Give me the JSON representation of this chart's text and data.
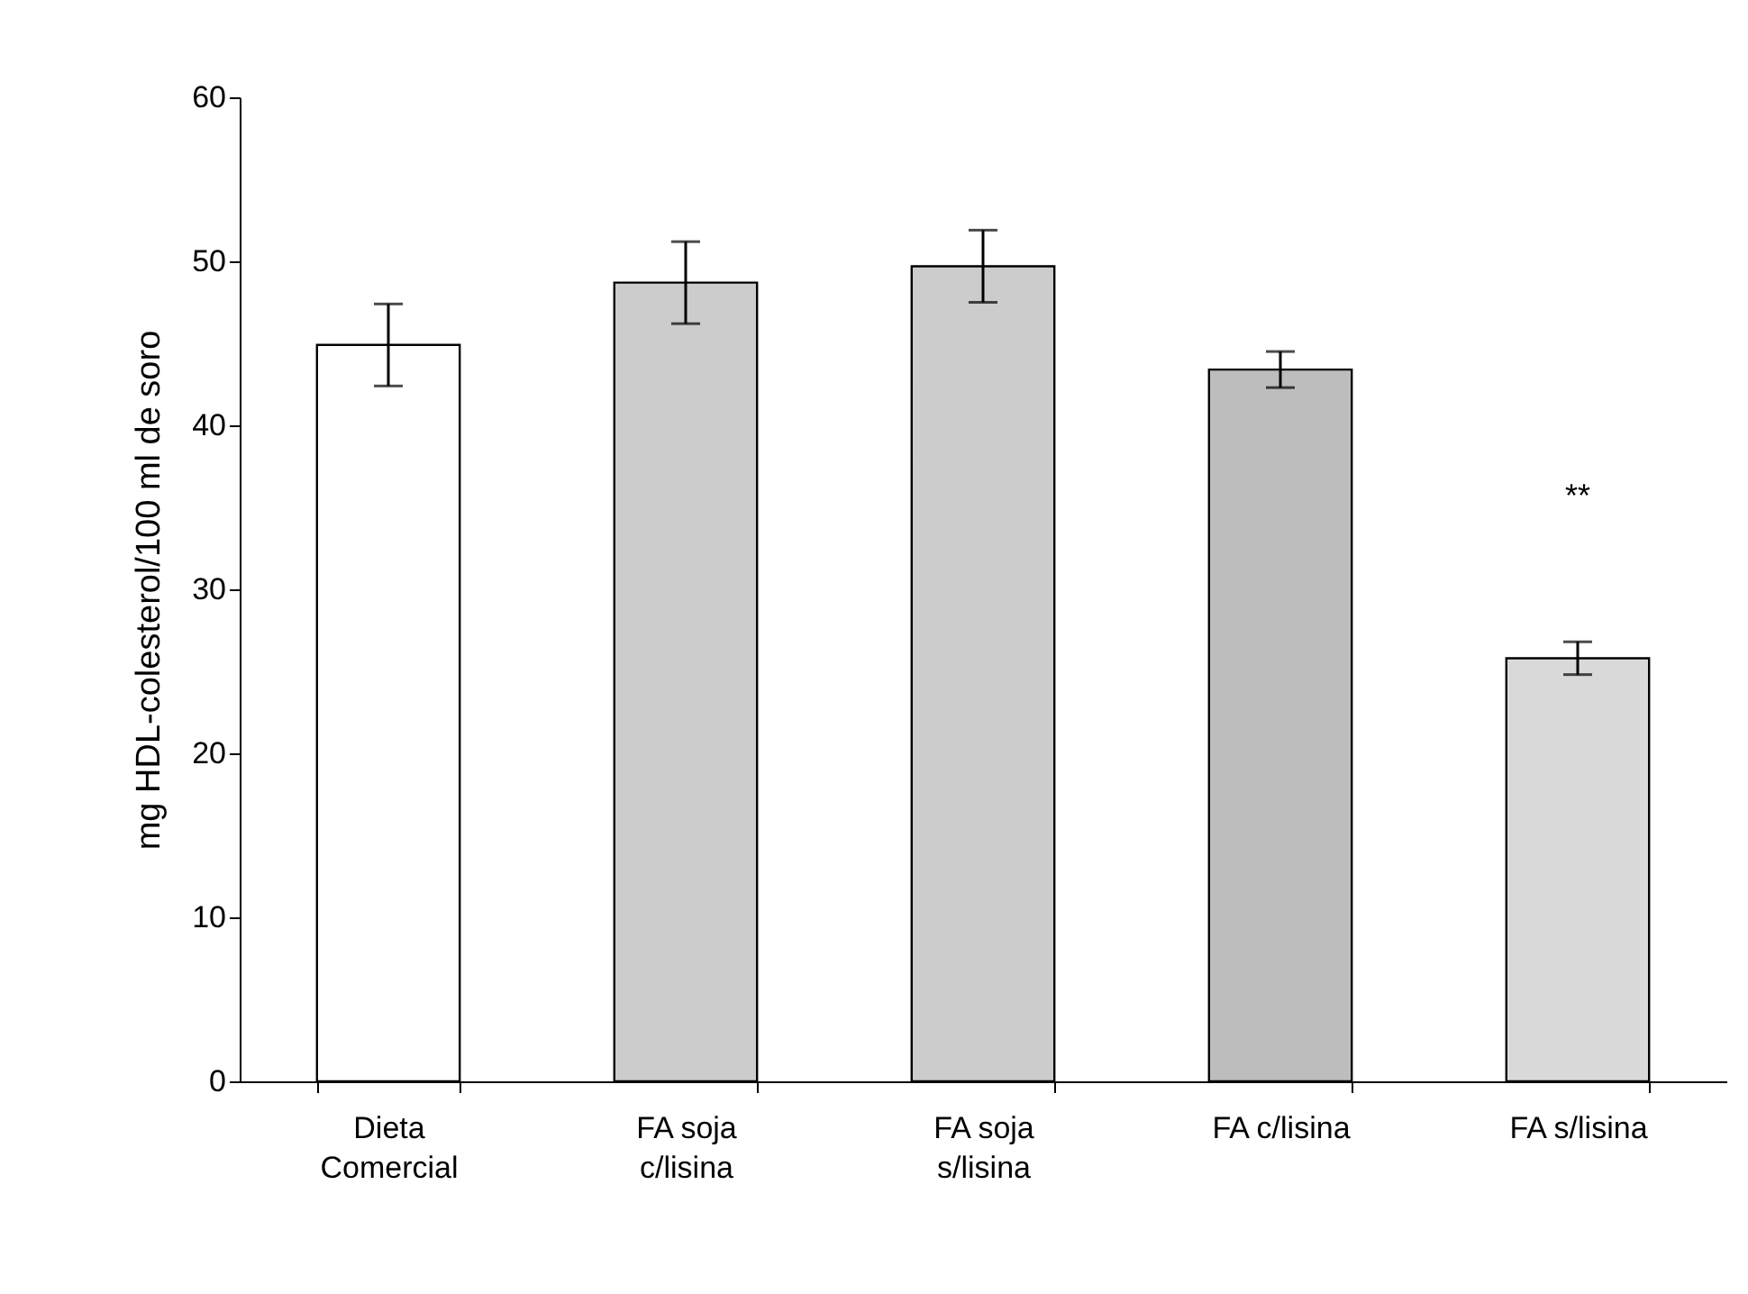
{
  "chart_data": {
    "type": "bar",
    "ylabel": "mg HDL-colesterol/100 ml de soro",
    "categories": [
      "Dieta Comercial",
      "FA soja c/lisina",
      "FA soja s/lisina",
      "FA c/lisina",
      "FA s/lisina"
    ],
    "values": [
      44.9,
      48.7,
      49.7,
      43.4,
      25.8
    ],
    "errors": [
      2.5,
      2.5,
      2.2,
      1.1,
      1.0
    ],
    "colors": [
      "#ffffff",
      "#cccccc",
      "#cccccc",
      "#bdbdbd",
      "#d9d9d9"
    ],
    "ylim": [
      0,
      60
    ],
    "yticks": [
      0,
      10,
      20,
      30,
      40,
      50,
      60
    ],
    "grid": false,
    "annotations": [
      "**"
    ]
  }
}
